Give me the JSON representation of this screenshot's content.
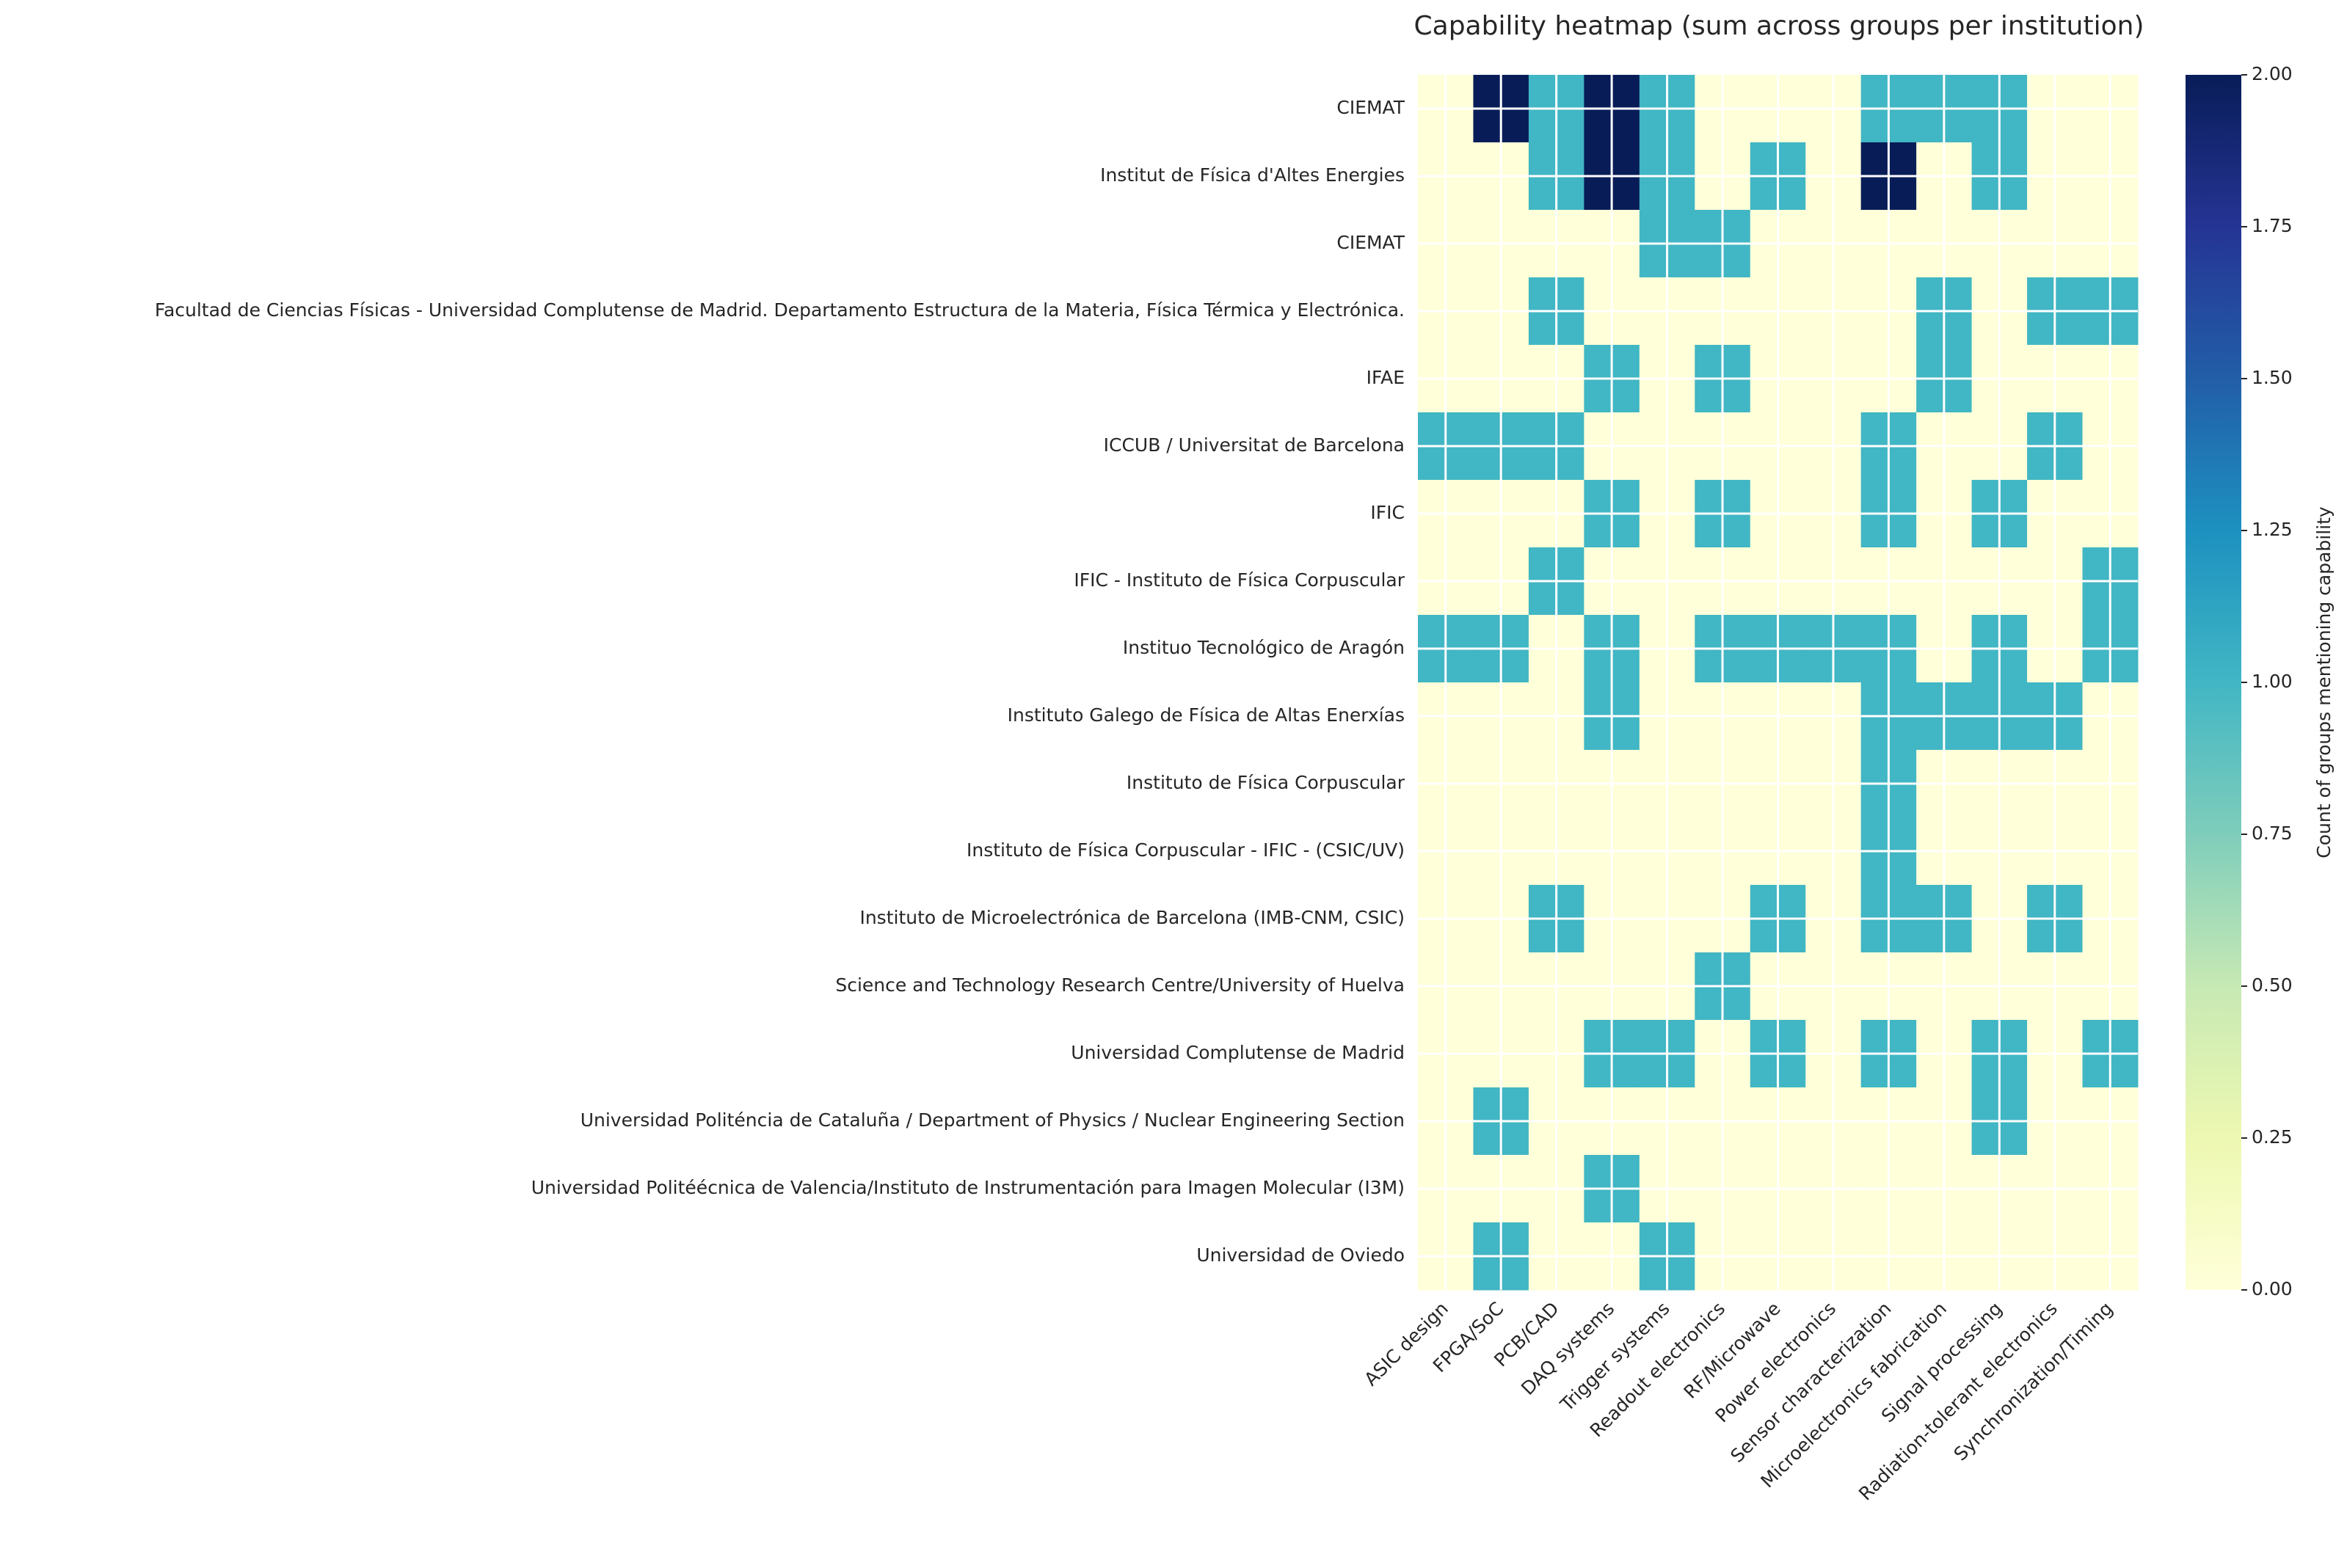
{
  "chart_data": {
    "type": "heatmap",
    "title": "Capability heatmap (sum across groups per institution)",
    "x_categories": [
      "ASIC design",
      "FPGA/SoC",
      "PCB/CAD",
      "DAQ systems",
      "Trigger systems",
      "Readout electronics",
      "RF/Microwave",
      "Power electronics",
      "Sensor characterization",
      "Microelectronics fabrication",
      "Signal processing",
      "Radiation-tolerant electronics",
      "Synchronization/Timing"
    ],
    "y_categories": [
      "CIEMAT",
      "Institut de Física d'Altes Energies",
      "CIEMAT ",
      "Facultad de Ciencias Físicas - Universidad Complutense de Madrid. Departamento Estructura de la Materia, Física Térmica y Electrónica.",
      "IFAE",
      "ICCUB / Universitat de Barcelona",
      "IFIC",
      "IFIC - Instituto de Física Corpuscular",
      "Instituo Tecnológico de Aragón",
      "Instituto Galego de Física de Altas Enerxías",
      "Instituto de Física Corpuscular",
      "Instituto de Física Corpuscular - IFIC - (CSIC/UV)",
      "Instituto de Microelectrónica de Barcelona (IMB-CNM, CSIC)",
      "Science and Technology Research Centre/University of Huelva",
      "Universidad Complutense de Madrid",
      "Universidad Politéncia de Cataluña / Department of Physics / Nuclear Engineering Section",
      "Universidad Politéécnica de Valencia/Instituto de Instrumentación para Imagen Molecular (I3M)",
      "Universidad de Oviedo"
    ],
    "values": [
      [
        0,
        2,
        1,
        2,
        1,
        0,
        0,
        0,
        1,
        1,
        1,
        0,
        0
      ],
      [
        0,
        0,
        1,
        2,
        1,
        0,
        1,
        0,
        2,
        0,
        1,
        0,
        0
      ],
      [
        0,
        0,
        0,
        0,
        1,
        1,
        0,
        0,
        0,
        0,
        0,
        0,
        0
      ],
      [
        0,
        0,
        1,
        0,
        0,
        0,
        0,
        0,
        0,
        1,
        0,
        1,
        1
      ],
      [
        0,
        0,
        0,
        1,
        0,
        1,
        0,
        0,
        0,
        1,
        0,
        0,
        0
      ],
      [
        1,
        1,
        1,
        0,
        0,
        0,
        0,
        0,
        1,
        0,
        0,
        1,
        0
      ],
      [
        0,
        0,
        0,
        1,
        0,
        1,
        0,
        0,
        1,
        0,
        1,
        0,
        0
      ],
      [
        0,
        0,
        1,
        0,
        0,
        0,
        0,
        0,
        0,
        0,
        0,
        0,
        1
      ],
      [
        1,
        1,
        0,
        1,
        0,
        1,
        1,
        1,
        1,
        0,
        1,
        0,
        1
      ],
      [
        0,
        0,
        0,
        1,
        0,
        0,
        0,
        0,
        1,
        1,
        1,
        1,
        0
      ],
      [
        0,
        0,
        0,
        0,
        0,
        0,
        0,
        0,
        1,
        0,
        0,
        0,
        0
      ],
      [
        0,
        0,
        0,
        0,
        0,
        0,
        0,
        0,
        1,
        0,
        0,
        0,
        0
      ],
      [
        0,
        0,
        1,
        0,
        0,
        0,
        1,
        0,
        1,
        1,
        0,
        1,
        0
      ],
      [
        0,
        0,
        0,
        0,
        0,
        1,
        0,
        0,
        0,
        0,
        0,
        0,
        0
      ],
      [
        0,
        0,
        0,
        1,
        1,
        0,
        1,
        0,
        1,
        0,
        1,
        0,
        1
      ],
      [
        0,
        1,
        0,
        0,
        0,
        0,
        0,
        0,
        0,
        0,
        1,
        0,
        0
      ],
      [
        0,
        0,
        0,
        1,
        0,
        0,
        0,
        0,
        0,
        0,
        0,
        0,
        0
      ],
      [
        0,
        1,
        0,
        0,
        1,
        0,
        0,
        0,
        0,
        0,
        0,
        0,
        0
      ]
    ],
    "colormap": "YlGnBu",
    "colorbar_label": "Count of groups mentioning capability",
    "clim": [
      0,
      2
    ],
    "cticks": [
      {
        "value": 0,
        "label": "0.00"
      },
      {
        "value": 0.25,
        "label": "0.25"
      },
      {
        "value": 0.5,
        "label": "0.50"
      },
      {
        "value": 0.75,
        "label": "0.75"
      },
      {
        "value": 1,
        "label": "1.00"
      },
      {
        "value": 1.25,
        "label": "1.25"
      },
      {
        "value": 1.5,
        "label": "1.50"
      },
      {
        "value": 1.75,
        "label": "1.75"
      },
      {
        "value": 2,
        "label": "2.00"
      }
    ],
    "grid": true
  }
}
